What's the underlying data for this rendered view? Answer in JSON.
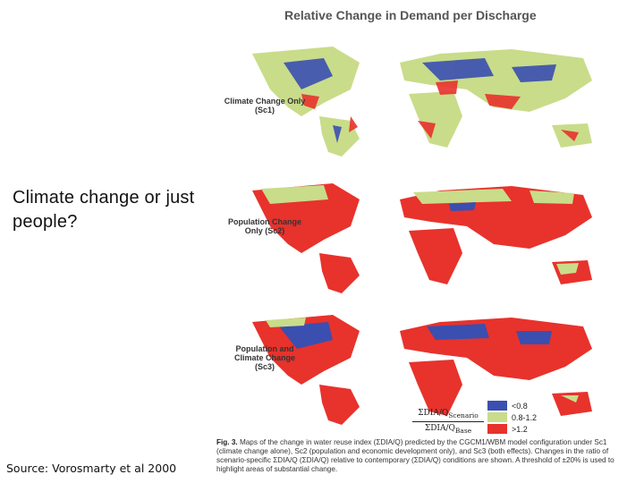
{
  "slide": {
    "question": "Climate change or just people?",
    "source": "Source: Vorosmarty et al 2000"
  },
  "figure": {
    "title": "Relative Change in Demand per Discharge",
    "panels": [
      {
        "line1": "Climate Change Only",
        "line2": "(Sc1)",
        "line3": ""
      },
      {
        "line1": "Population Change",
        "line2": "Only (Sc2)",
        "line3": ""
      },
      {
        "line1": "Population and",
        "line2": "Climate Change",
        "line3": "(Sc3)"
      }
    ],
    "legend": {
      "numerator": "ΣDIA/Q",
      "numerator_sub": "Scenario",
      "denominator": "ΣDIA/Q",
      "denominator_sub": "Base",
      "items": [
        {
          "label": "<0.8",
          "color": "#3a4fb0"
        },
        {
          "label": "0.8-1.2",
          "color": "#c9dc8a"
        },
        {
          "label": ">1.2",
          "color": "#e8322c"
        }
      ]
    },
    "caption": {
      "lead": "Fig. 3.",
      "text": "Maps of the change in water reuse index (ΣDIA/Q) predicted by the CGCM1/WBM model configuration under Sc1 (climate change alone), Sc2 (population and economic development only), and Sc3 (both effects). Changes in the ratio of scenario-specific ΣDIA/Q (ΣDIA/Q) relative to contemporary (ΣDIA/Q) conditions are shown. A threshold of ±20% is used to highlight areas of substantial change."
    }
  }
}
